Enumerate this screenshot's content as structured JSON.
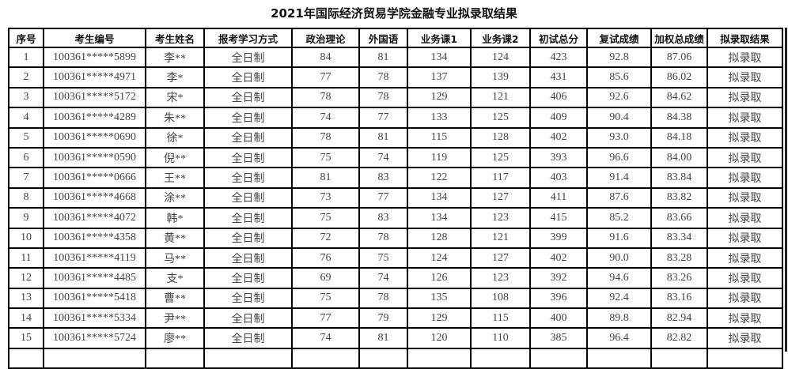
{
  "title": "2021年国际经济贸易学院金融专业拟录取结果",
  "columns": [
    "序号",
    "考生编号",
    "考生姓名",
    "报考学习方式",
    "政治理论",
    "外国语",
    "业务课1",
    "业务课2",
    "初试总分",
    "复试成绩",
    "加权总成绩",
    "拟录取结果"
  ],
  "rows": [
    [
      "1",
      "100361*****5899",
      "李**",
      "全日制",
      "84",
      "81",
      "134",
      "124",
      "423",
      "92.8",
      "87.06",
      "拟录取"
    ],
    [
      "2",
      "100361*****4971",
      "李*",
      "全日制",
      "77",
      "78",
      "137",
      "139",
      "431",
      "85.6",
      "86.02",
      "拟录取"
    ],
    [
      "3",
      "100361*****5172",
      "宋*",
      "全日制",
      "78",
      "78",
      "129",
      "121",
      "406",
      "92.6",
      "84.62",
      "拟录取"
    ],
    [
      "4",
      "100361*****4289",
      "朱**",
      "全日制",
      "74",
      "77",
      "133",
      "125",
      "409",
      "90.4",
      "84.38",
      "拟录取"
    ],
    [
      "5",
      "100361*****0690",
      "徐*",
      "全日制",
      "78",
      "81",
      "115",
      "128",
      "402",
      "93.0",
      "84.18",
      "拟录取"
    ],
    [
      "6",
      "100361*****0590",
      "倪**",
      "全日制",
      "75",
      "74",
      "119",
      "125",
      "393",
      "96.6",
      "84.00",
      "拟录取"
    ],
    [
      "7",
      "100361*****0666",
      "王**",
      "全日制",
      "81",
      "83",
      "122",
      "117",
      "403",
      "91.4",
      "83.84",
      "拟录取"
    ],
    [
      "8",
      "100361*****4668",
      "涂**",
      "全日制",
      "73",
      "77",
      "134",
      "127",
      "411",
      "87.6",
      "83.82",
      "拟录取"
    ],
    [
      "9",
      "100361*****4072",
      "韩*",
      "全日制",
      "75",
      "83",
      "134",
      "123",
      "415",
      "85.2",
      "83.66",
      "拟录取"
    ],
    [
      "10",
      "100361*****4358",
      "黄**",
      "全日制",
      "72",
      "78",
      "128",
      "121",
      "399",
      "91.6",
      "83.34",
      "拟录取"
    ],
    [
      "11",
      "100361*****4119",
      "马**",
      "全日制",
      "76",
      "75",
      "124",
      "127",
      "402",
      "90.0",
      "83.28",
      "拟录取"
    ],
    [
      "12",
      "100361*****4485",
      "支*",
      "全日制",
      "69",
      "74",
      "126",
      "123",
      "392",
      "94.6",
      "83.26",
      "拟录取"
    ],
    [
      "13",
      "100361*****5418",
      "曹**",
      "全日制",
      "75",
      "78",
      "135",
      "108",
      "396",
      "92.4",
      "83.16",
      "拟录取"
    ],
    [
      "14",
      "100361*****5334",
      "尹**",
      "全日制",
      "77",
      "79",
      "129",
      "115",
      "400",
      "89.8",
      "82.94",
      "拟录取"
    ],
    [
      "15",
      "100361*****5724",
      "廖**",
      "全日制",
      "74",
      "81",
      "120",
      "110",
      "385",
      "96.4",
      "82.82",
      "拟录取"
    ]
  ]
}
